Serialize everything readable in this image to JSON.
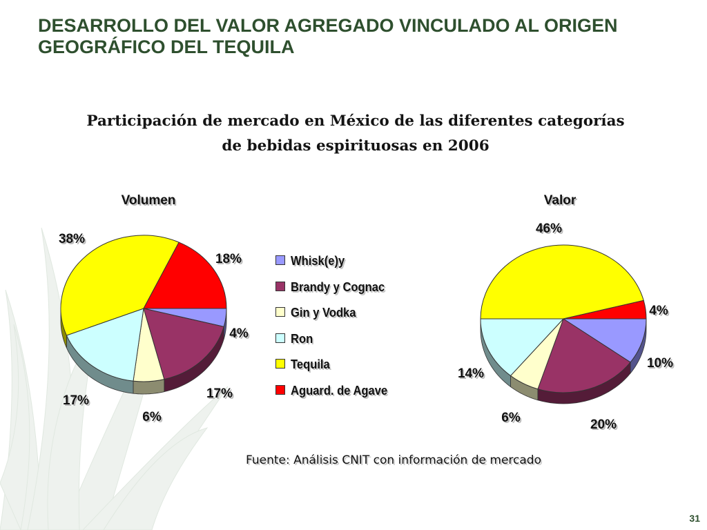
{
  "slide": {
    "title_lines": [
      "DESARROLLO DEL VALOR AGREGADO VINCULADO AL ORIGEN",
      "GEOGRÁFICO DEL TEQUILA"
    ],
    "subtitle_lines": [
      "Participación de mercado en México de las diferentes categorías",
      "de bebidas espirituosas en 2006"
    ],
    "source": "Fuente: Análisis CNIT con información de mercado",
    "page_number": "31",
    "title_color": "#2e4f2e"
  },
  "legend": [
    {
      "label": "Whisk(e)y",
      "color": "#9999ff"
    },
    {
      "label": "Brandy y Cognac",
      "color": "#993366"
    },
    {
      "label": "Gin y Vodka",
      "color": "#ffffcc"
    },
    {
      "label": "Ron",
      "color": "#ccffff"
    },
    {
      "label": "Tequila",
      "color": "#ffff00"
    },
    {
      "label": "Aguard. de Agave",
      "color": "#ff0000"
    }
  ],
  "chart_data": [
    {
      "type": "pie",
      "title": "Volumen",
      "categories": [
        "Whisk(e)y",
        "Brandy y Cognac",
        "Gin y Vodka",
        "Ron",
        "Tequila",
        "Aguard. de Agave"
      ],
      "values": [
        4,
        17,
        6,
        17,
        38,
        18
      ],
      "labels": [
        "4%",
        "17%",
        "6%",
        "17%",
        "38%",
        "18%"
      ]
    },
    {
      "type": "pie",
      "title": "Valor",
      "categories": [
        "Whisk(e)y",
        "Brandy y Cognac",
        "Gin y Vodka",
        "Ron",
        "Tequila",
        "Aguard. de Agave"
      ],
      "values": [
        10,
        20,
        6,
        14,
        46,
        4
      ],
      "labels": [
        "10%",
        "20%",
        "6%",
        "14%",
        "46%",
        "4%"
      ]
    }
  ]
}
